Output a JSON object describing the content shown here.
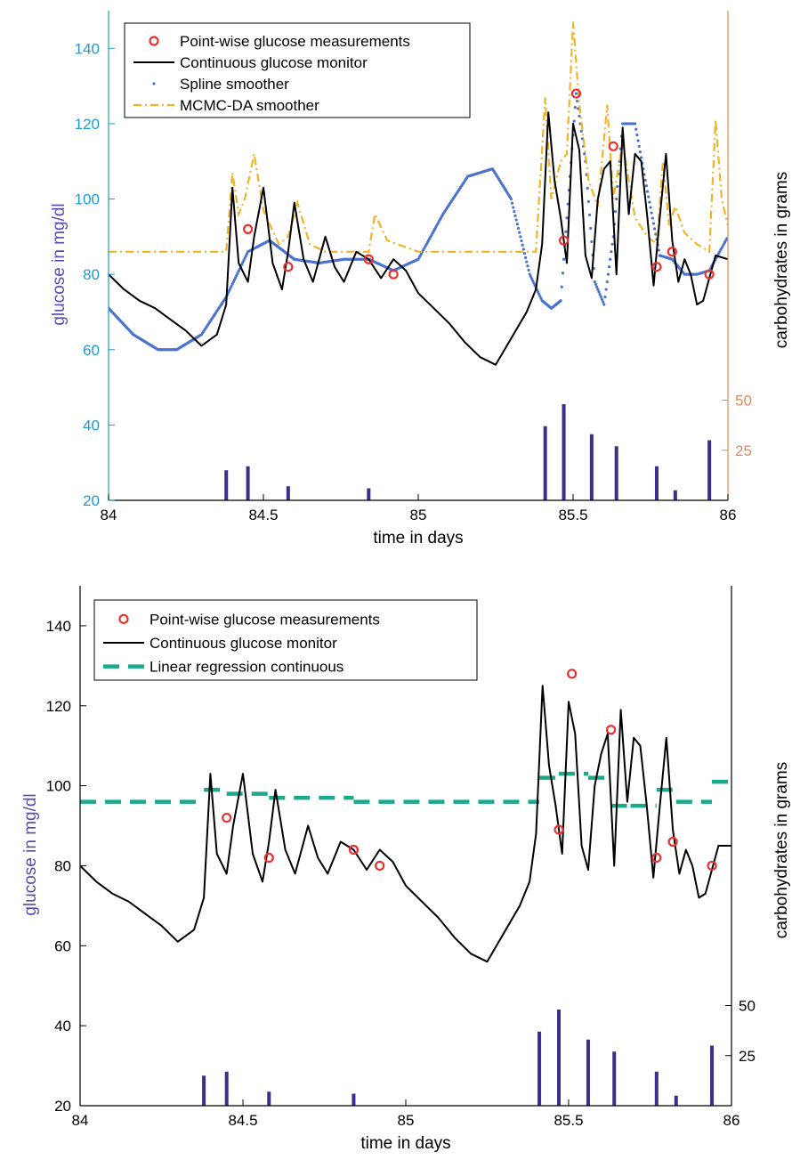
{
  "colors": {
    "left_axis_top": "#1f9ad6",
    "right_axis_top": "#e8885a",
    "ylabel_color": "#5b4bb0",
    "measurement": "#e8322f",
    "cgm": "#000000",
    "spline": "#4a73cf",
    "mcmc": "#f0b429",
    "linreg": "#1aa98a",
    "carbs": "#3c2f8c"
  },
  "chart_data": [
    {
      "type": "line",
      "panel": "top",
      "xlabel": "time in days",
      "ylabel": "glucose in mg/dl",
      "ylabel_right": "carbohydrates in grams",
      "xlim": [
        84,
        86
      ],
      "ylim": [
        20,
        150
      ],
      "xticks": [
        "84",
        "84.5",
        "85",
        "85.5",
        "86"
      ],
      "yticks": [
        "20",
        "40",
        "60",
        "80",
        "100",
        "120",
        "140"
      ],
      "right_ticks": [
        {
          "grams": 25,
          "label": "25"
        },
        {
          "grams": 50,
          "label": "50"
        }
      ],
      "legend_position": "top-left",
      "legend": [
        "Point-wise glucose measurements",
        "Continuous glucose monitor",
        "Spline smoother",
        "MCMC-DA smoother"
      ],
      "series": [
        {
          "name": "Point-wise glucose measurements",
          "kind": "markers",
          "x": [
            84.45,
            84.58,
            84.84,
            84.92,
            85.47,
            85.51,
            85.63,
            85.77,
            85.82,
            85.94
          ],
          "y": [
            92,
            82,
            84,
            80,
            89,
            128,
            114,
            82,
            86,
            80
          ]
        },
        {
          "name": "Continuous glucose monitor",
          "kind": "line",
          "x": [
            84.0,
            84.05,
            84.1,
            84.15,
            84.2,
            84.25,
            84.3,
            84.35,
            84.38,
            84.4,
            84.42,
            84.45,
            84.47,
            84.5,
            84.53,
            84.56,
            84.58,
            84.6,
            84.63,
            84.66,
            84.7,
            84.73,
            84.76,
            84.8,
            84.84,
            84.88,
            84.92,
            84.96,
            85.0,
            85.05,
            85.1,
            85.15,
            85.2,
            85.25,
            85.3,
            85.35,
            85.38,
            85.4,
            85.42,
            85.44,
            85.46,
            85.48,
            85.5,
            85.52,
            85.54,
            85.56,
            85.58,
            85.6,
            85.62,
            85.64,
            85.66,
            85.68,
            85.7,
            85.72,
            85.74,
            85.76,
            85.78,
            85.8,
            85.82,
            85.84,
            85.86,
            85.88,
            85.9,
            85.92,
            85.94,
            85.96,
            86.0
          ],
          "y": [
            80,
            76,
            73,
            71,
            68,
            65,
            61,
            64,
            72,
            103,
            83,
            78,
            90,
            103,
            83,
            76,
            86,
            99,
            84,
            78,
            90,
            82,
            78,
            86,
            84,
            79,
            84,
            81,
            75,
            71,
            67,
            62,
            58,
            56,
            63,
            70,
            76,
            88,
            123,
            105,
            95,
            83,
            120,
            113,
            85,
            79,
            100,
            108,
            110,
            80,
            119,
            96,
            112,
            110,
            95,
            77,
            95,
            112,
            89,
            78,
            84,
            80,
            72,
            73,
            79,
            85,
            84
          ]
        },
        {
          "name": "Spline smoother",
          "kind": "dots",
          "x": [
            84.0,
            84.08,
            84.16,
            84.22,
            84.3,
            84.38,
            84.45,
            84.52,
            84.6,
            84.68,
            84.76,
            84.84,
            84.92,
            85.0,
            85.08,
            85.16,
            85.24,
            85.3,
            85.36,
            85.4,
            85.43,
            85.46,
            85.48,
            85.51,
            85.54,
            85.57,
            85.6,
            85.63,
            85.66,
            85.7,
            85.74,
            85.78,
            85.82,
            85.86,
            85.9,
            85.94,
            85.98,
            86.0
          ],
          "y": [
            71,
            64,
            60,
            60,
            64,
            74,
            86,
            89,
            84,
            83,
            84,
            84,
            81,
            84,
            96,
            106,
            108,
            100,
            80,
            73,
            71,
            73,
            95,
            128,
            110,
            78,
            72,
            90,
            120,
            120,
            102,
            85,
            84,
            80,
            80,
            81,
            87,
            90
          ]
        },
        {
          "name": "MCMC-DA smoother",
          "kind": "dashdot",
          "x": [
            84.0,
            84.2,
            84.38,
            84.4,
            84.42,
            84.44,
            84.47,
            84.5,
            84.55,
            84.58,
            84.61,
            84.65,
            84.7,
            84.8,
            84.84,
            84.86,
            84.9,
            85.0,
            85.1,
            85.2,
            85.3,
            85.38,
            85.41,
            85.43,
            85.46,
            85.48,
            85.5,
            85.52,
            85.55,
            85.58,
            85.61,
            85.63,
            85.66,
            85.7,
            85.74,
            85.77,
            85.79,
            85.81,
            85.83,
            85.86,
            85.9,
            85.94,
            85.96,
            85.98,
            86.0
          ],
          "y": [
            86,
            86,
            86,
            107,
            96,
            100,
            112,
            97,
            88,
            90,
            99,
            88,
            86,
            86,
            86,
            96,
            89,
            86,
            86,
            86,
            86,
            86,
            127,
            100,
            110,
            112,
            147,
            125,
            105,
            98,
            125,
            100,
            115,
            95,
            90,
            88,
            110,
            93,
            98,
            91,
            88,
            86,
            121,
            100,
            93
          ]
        },
        {
          "name": "Carbohydrates",
          "kind": "bars",
          "x": [
            84.38,
            84.45,
            84.58,
            84.84,
            85.41,
            85.47,
            85.56,
            85.64,
            85.77,
            85.83,
            85.94
          ],
          "y": [
            15,
            17,
            7,
            6,
            37,
            48,
            33,
            27,
            17,
            5,
            30
          ]
        }
      ]
    },
    {
      "type": "line",
      "panel": "bottom",
      "xlabel": "time in days",
      "ylabel": "glucose in mg/dl",
      "ylabel_right": "carbohydrates in grams",
      "xlim": [
        84,
        86
      ],
      "ylim": [
        20,
        150
      ],
      "xticks": [
        "84",
        "84.5",
        "85",
        "85.5",
        "86"
      ],
      "yticks": [
        "20",
        "40",
        "60",
        "80",
        "100",
        "120",
        "140"
      ],
      "right_ticks": [
        {
          "grams": 25,
          "label": "25"
        },
        {
          "grams": 50,
          "label": "50"
        }
      ],
      "legend_position": "top-left",
      "legend": [
        "Point-wise glucose measurements",
        "Continuous glucose monitor",
        "Linear regression continuous"
      ],
      "series": [
        {
          "name": "Point-wise glucose measurements",
          "kind": "markers",
          "x": [
            84.45,
            84.58,
            84.84,
            84.92,
            85.47,
            85.51,
            85.63,
            85.77,
            85.82,
            85.94
          ],
          "y": [
            92,
            82,
            84,
            80,
            89,
            128,
            114,
            82,
            86,
            80
          ]
        },
        {
          "name": "Continuous glucose monitor",
          "kind": "line",
          "x": [
            84.0,
            84.05,
            84.1,
            84.15,
            84.2,
            84.25,
            84.3,
            84.35,
            84.38,
            84.4,
            84.42,
            84.45,
            84.47,
            84.5,
            84.53,
            84.56,
            84.58,
            84.6,
            84.63,
            84.66,
            84.7,
            84.73,
            84.76,
            84.8,
            84.84,
            84.88,
            84.92,
            84.96,
            85.0,
            85.05,
            85.1,
            85.15,
            85.2,
            85.25,
            85.3,
            85.35,
            85.38,
            85.4,
            85.42,
            85.44,
            85.46,
            85.48,
            85.5,
            85.52,
            85.54,
            85.56,
            85.58,
            85.6,
            85.62,
            85.64,
            85.66,
            85.68,
            85.7,
            85.72,
            85.74,
            85.76,
            85.78,
            85.8,
            85.82,
            85.84,
            85.86,
            85.88,
            85.9,
            85.92,
            85.94,
            85.96,
            86.0
          ],
          "y": [
            80,
            76,
            73,
            71,
            68,
            65,
            61,
            64,
            72,
            103,
            83,
            78,
            90,
            103,
            83,
            76,
            86,
            99,
            84,
            78,
            90,
            82,
            78,
            86,
            84,
            79,
            84,
            81,
            75,
            71,
            67,
            62,
            58,
            56,
            63,
            70,
            76,
            88,
            125,
            105,
            95,
            83,
            121,
            113,
            85,
            79,
            100,
            108,
            113,
            80,
            119,
            96,
            112,
            110,
            95,
            77,
            95,
            112,
            89,
            78,
            84,
            80,
            72,
            73,
            79,
            85,
            85
          ]
        },
        {
          "name": "Linear regression continuous",
          "kind": "steps",
          "segments": [
            {
              "x": [
                84.0,
                84.38
              ],
              "y": 96
            },
            {
              "x": [
                84.38,
                84.45
              ],
              "y": 99
            },
            {
              "x": [
                84.45,
                84.58
              ],
              "y": 98
            },
            {
              "x": [
                84.58,
                84.84
              ],
              "y": 97
            },
            {
              "x": [
                84.84,
                85.41
              ],
              "y": 96
            },
            {
              "x": [
                85.41,
                85.47
              ],
              "y": 102
            },
            {
              "x": [
                85.47,
                85.56
              ],
              "y": 103
            },
            {
              "x": [
                85.56,
                85.63
              ],
              "y": 102
            },
            {
              "x": [
                85.63,
                85.69
              ],
              "y": 95
            },
            {
              "x": [
                85.69,
                85.77
              ],
              "y": 95
            },
            {
              "x": [
                85.77,
                85.83
              ],
              "y": 99
            },
            {
              "x": [
                85.83,
                85.94
              ],
              "y": 96
            },
            {
              "x": [
                85.94,
                86.0
              ],
              "y": 101
            }
          ]
        },
        {
          "name": "Carbohydrates",
          "kind": "bars",
          "x": [
            84.38,
            84.45,
            84.58,
            84.84,
            85.41,
            85.47,
            85.56,
            85.64,
            85.77,
            85.83,
            85.94
          ],
          "y": [
            15,
            17,
            7,
            6,
            37,
            48,
            33,
            27,
            17,
            5,
            30
          ]
        }
      ]
    }
  ]
}
